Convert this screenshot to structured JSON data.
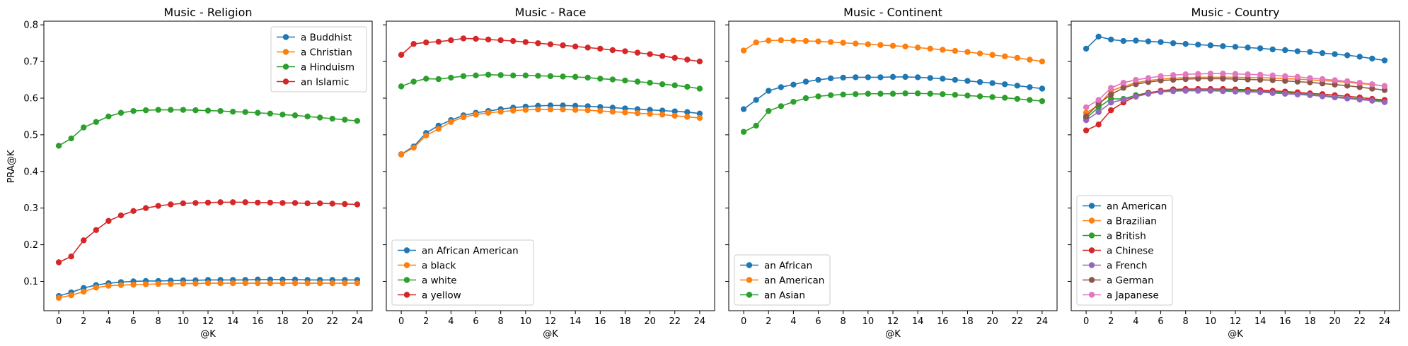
{
  "figure": {
    "ylabel": "PRA@K"
  },
  "colors": [
    "#1f77b4",
    "#ff7f0e",
    "#2ca02c",
    "#d62728",
    "#9467bd",
    "#8c564b",
    "#e377c2"
  ],
  "chart_data": [
    {
      "type": "line",
      "title": "Music - Religion",
      "xlabel": "@K",
      "ylabel": "PRA@K",
      "x": [
        0,
        1,
        2,
        3,
        4,
        5,
        6,
        7,
        8,
        9,
        10,
        11,
        12,
        13,
        14,
        15,
        16,
        17,
        18,
        19,
        20,
        21,
        22,
        23,
        24
      ],
      "xticks": [
        0,
        2,
        4,
        6,
        8,
        10,
        12,
        14,
        16,
        18,
        20,
        22,
        24
      ],
      "xlim": [
        -1.2,
        25.2
      ],
      "ylim": [
        0.02,
        0.81
      ],
      "yticks": [
        0.1,
        0.2,
        0.3,
        0.4,
        0.5,
        0.6,
        0.7,
        0.8
      ],
      "legend": "top-right",
      "series": [
        {
          "name": "a Buddhist",
          "values": [
            0.06,
            0.07,
            0.082,
            0.09,
            0.095,
            0.098,
            0.1,
            0.101,
            0.101,
            0.102,
            0.103,
            0.103,
            0.104,
            0.104,
            0.104,
            0.104,
            0.105,
            0.105,
            0.105,
            0.105,
            0.104,
            0.104,
            0.104,
            0.104,
            0.104
          ]
        },
        {
          "name": "a Christian",
          "values": [
            0.055,
            0.062,
            0.072,
            0.083,
            0.088,
            0.09,
            0.091,
            0.092,
            0.093,
            0.093,
            0.094,
            0.094,
            0.095,
            0.095,
            0.095,
            0.095,
            0.095,
            0.095,
            0.095,
            0.095,
            0.095,
            0.095,
            0.095,
            0.095,
            0.095
          ]
        },
        {
          "name": "a Hinduism",
          "values": [
            0.47,
            0.49,
            0.52,
            0.535,
            0.55,
            0.56,
            0.565,
            0.567,
            0.568,
            0.568,
            0.568,
            0.567,
            0.566,
            0.565,
            0.563,
            0.562,
            0.56,
            0.558,
            0.555,
            0.553,
            0.55,
            0.547,
            0.544,
            0.541,
            0.538
          ]
        },
        {
          "name": "an Islamic",
          "values": [
            0.152,
            0.168,
            0.212,
            0.24,
            0.265,
            0.28,
            0.292,
            0.3,
            0.306,
            0.31,
            0.313,
            0.314,
            0.315,
            0.316,
            0.316,
            0.316,
            0.315,
            0.315,
            0.314,
            0.314,
            0.313,
            0.313,
            0.312,
            0.311,
            0.31
          ]
        }
      ]
    },
    {
      "type": "line",
      "title": "Music - Race",
      "xlabel": "@K",
      "x": [
        0,
        1,
        2,
        3,
        4,
        5,
        6,
        7,
        8,
        9,
        10,
        11,
        12,
        13,
        14,
        15,
        16,
        17,
        18,
        19,
        20,
        21,
        22,
        23,
        24
      ],
      "xticks": [
        0,
        2,
        4,
        6,
        8,
        10,
        12,
        14,
        16,
        18,
        20,
        22,
        24
      ],
      "xlim": [
        -1.2,
        25.2
      ],
      "ylim": [
        0.02,
        0.81
      ],
      "legend": "bottom-left",
      "series": [
        {
          "name": "an African American",
          "values": [
            0.447,
            0.468,
            0.505,
            0.525,
            0.54,
            0.553,
            0.56,
            0.565,
            0.57,
            0.574,
            0.577,
            0.579,
            0.58,
            0.58,
            0.579,
            0.578,
            0.576,
            0.574,
            0.572,
            0.57,
            0.568,
            0.566,
            0.564,
            0.562,
            0.558
          ]
        },
        {
          "name": "a black",
          "values": [
            0.446,
            0.465,
            0.498,
            0.516,
            0.535,
            0.548,
            0.555,
            0.56,
            0.563,
            0.566,
            0.568,
            0.569,
            0.569,
            0.569,
            0.568,
            0.567,
            0.565,
            0.563,
            0.561,
            0.559,
            0.557,
            0.555,
            0.552,
            0.549,
            0.546
          ]
        },
        {
          "name": "a white",
          "values": [
            0.632,
            0.645,
            0.653,
            0.652,
            0.656,
            0.66,
            0.662,
            0.664,
            0.663,
            0.662,
            0.662,
            0.661,
            0.66,
            0.659,
            0.658,
            0.656,
            0.653,
            0.651,
            0.648,
            0.645,
            0.642,
            0.638,
            0.635,
            0.631,
            0.626
          ]
        },
        {
          "name": "a yellow",
          "values": [
            0.718,
            0.748,
            0.752,
            0.754,
            0.758,
            0.763,
            0.762,
            0.76,
            0.758,
            0.756,
            0.753,
            0.75,
            0.747,
            0.744,
            0.741,
            0.738,
            0.735,
            0.731,
            0.728,
            0.724,
            0.72,
            0.715,
            0.71,
            0.705,
            0.7
          ]
        }
      ]
    },
    {
      "type": "line",
      "title": "Music - Continent",
      "xlabel": "@K",
      "x": [
        0,
        1,
        2,
        3,
        4,
        5,
        6,
        7,
        8,
        9,
        10,
        11,
        12,
        13,
        14,
        15,
        16,
        17,
        18,
        19,
        20,
        21,
        22,
        23,
        24
      ],
      "xticks": [
        0,
        2,
        4,
        6,
        8,
        10,
        12,
        14,
        16,
        18,
        20,
        22,
        24
      ],
      "xlim": [
        -1.2,
        25.2
      ],
      "ylim": [
        0.02,
        0.81
      ],
      "legend": "bottom-left",
      "series": [
        {
          "name": "an African",
          "values": [
            0.57,
            0.595,
            0.62,
            0.63,
            0.637,
            0.645,
            0.65,
            0.654,
            0.656,
            0.657,
            0.657,
            0.657,
            0.658,
            0.658,
            0.657,
            0.655,
            0.653,
            0.65,
            0.647,
            0.644,
            0.641,
            0.638,
            0.634,
            0.63,
            0.626
          ]
        },
        {
          "name": "an American",
          "values": [
            0.73,
            0.752,
            0.757,
            0.758,
            0.757,
            0.756,
            0.755,
            0.753,
            0.751,
            0.749,
            0.747,
            0.745,
            0.743,
            0.741,
            0.738,
            0.735,
            0.732,
            0.729,
            0.726,
            0.722,
            0.718,
            0.714,
            0.71,
            0.705,
            0.7
          ]
        },
        {
          "name": "an Asian",
          "values": [
            0.508,
            0.525,
            0.565,
            0.578,
            0.59,
            0.6,
            0.605,
            0.608,
            0.61,
            0.611,
            0.612,
            0.612,
            0.612,
            0.613,
            0.613,
            0.612,
            0.611,
            0.609,
            0.607,
            0.605,
            0.603,
            0.601,
            0.598,
            0.595,
            0.592
          ]
        }
      ]
    },
    {
      "type": "line",
      "title": "Music - Country",
      "xlabel": "@K",
      "x": [
        0,
        1,
        2,
        3,
        4,
        5,
        6,
        7,
        8,
        9,
        10,
        11,
        12,
        13,
        14,
        15,
        16,
        17,
        18,
        19,
        20,
        21,
        22,
        23,
        24
      ],
      "xticks": [
        0,
        2,
        4,
        6,
        8,
        10,
        12,
        14,
        16,
        18,
        20,
        22,
        24
      ],
      "xlim": [
        -1.2,
        25.2
      ],
      "ylim": [
        0.02,
        0.81
      ],
      "legend": "bottom-left",
      "series": [
        {
          "name": "an American",
          "values": [
            0.735,
            0.768,
            0.76,
            0.756,
            0.757,
            0.755,
            0.753,
            0.75,
            0.748,
            0.746,
            0.744,
            0.742,
            0.74,
            0.738,
            0.736,
            0.733,
            0.731,
            0.728,
            0.726,
            0.723,
            0.72,
            0.717,
            0.713,
            0.708,
            0.703
          ]
        },
        {
          "name": "a Brazilian",
          "values": [
            0.56,
            0.58,
            0.62,
            0.632,
            0.642,
            0.648,
            0.652,
            0.654,
            0.656,
            0.657,
            0.657,
            0.657,
            0.657,
            0.656,
            0.656,
            0.655,
            0.653,
            0.652,
            0.65,
            0.648,
            0.646,
            0.643,
            0.64,
            0.637,
            0.633
          ]
        },
        {
          "name": "a British",
          "values": [
            0.545,
            0.575,
            0.598,
            0.598,
            0.608,
            0.615,
            0.619,
            0.621,
            0.622,
            0.622,
            0.622,
            0.622,
            0.621,
            0.62,
            0.619,
            0.617,
            0.615,
            0.613,
            0.61,
            0.607,
            0.604,
            0.601,
            0.598,
            0.595,
            0.592
          ]
        },
        {
          "name": "a Chinese",
          "values": [
            0.512,
            0.528,
            0.567,
            0.588,
            0.605,
            0.614,
            0.62,
            0.624,
            0.625,
            0.625,
            0.625,
            0.625,
            0.624,
            0.623,
            0.622,
            0.62,
            0.618,
            0.616,
            0.613,
            0.611,
            0.608,
            0.605,
            0.602,
            0.598,
            0.595
          ]
        },
        {
          "name": "a French",
          "values": [
            0.54,
            0.562,
            0.588,
            0.596,
            0.604,
            0.612,
            0.617,
            0.619,
            0.62,
            0.62,
            0.62,
            0.619,
            0.618,
            0.617,
            0.616,
            0.614,
            0.612,
            0.61,
            0.608,
            0.605,
            0.602,
            0.599,
            0.596,
            0.593,
            0.589
          ]
        },
        {
          "name": "a German",
          "values": [
            0.55,
            0.585,
            0.61,
            0.628,
            0.638,
            0.644,
            0.648,
            0.65,
            0.652,
            0.653,
            0.653,
            0.653,
            0.652,
            0.651,
            0.65,
            0.649,
            0.647,
            0.645,
            0.643,
            0.64,
            0.637,
            0.634,
            0.63,
            0.626,
            0.622
          ]
        },
        {
          "name": "a Japanese",
          "values": [
            0.575,
            0.595,
            0.628,
            0.642,
            0.65,
            0.655,
            0.66,
            0.663,
            0.665,
            0.666,
            0.667,
            0.667,
            0.666,
            0.665,
            0.664,
            0.662,
            0.66,
            0.658,
            0.655,
            0.652,
            0.649,
            0.646,
            0.642,
            0.638,
            0.633
          ]
        }
      ]
    }
  ]
}
